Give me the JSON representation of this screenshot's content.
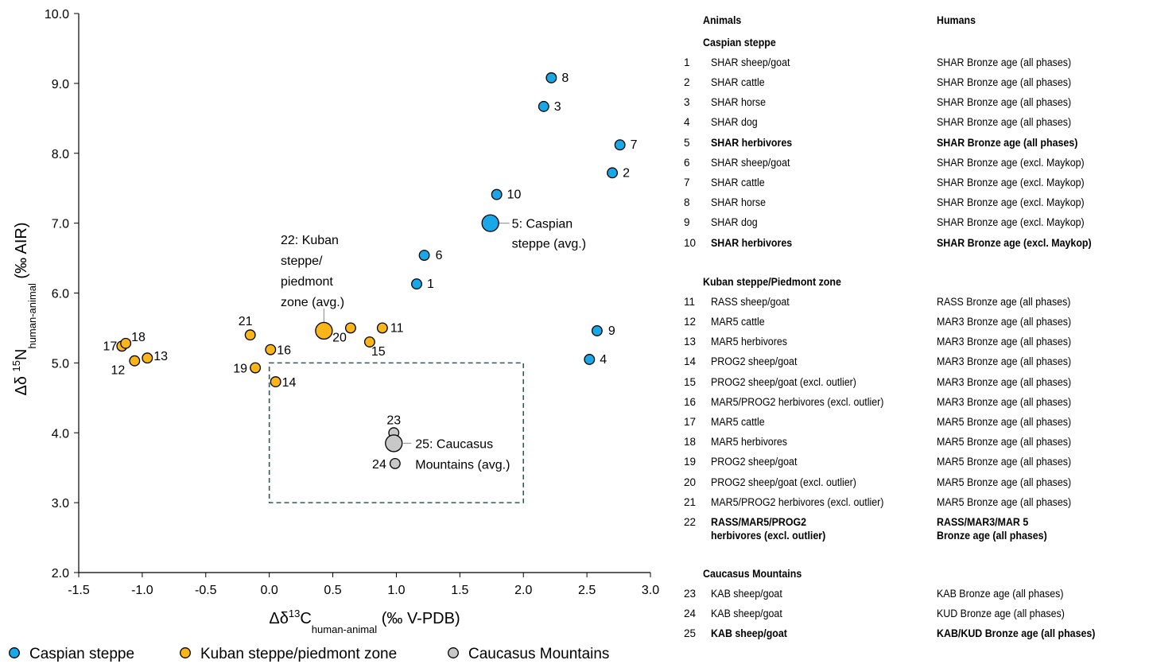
{
  "chart_data": {
    "type": "scatter",
    "xlabel_prefix": "Δδ",
    "xlabel_sup": "13",
    "xlabel_main": "C",
    "xlabel_sub": "human-animal",
    "xlabel_unit": " (‰ V-PDB)",
    "ylabel_prefix": "Δδ ",
    "ylabel_sup": "15",
    "ylabel_main": "N",
    "ylabel_sub": "human-animal",
    "ylabel_unit": " (‰ AIR)",
    "xlim": [
      -1.5,
      3.0
    ],
    "ylim": [
      2.0,
      10.0
    ],
    "x_ticks": [
      -1.5,
      -1.0,
      -0.5,
      0.0,
      0.5,
      1.0,
      1.5,
      2.0,
      2.5,
      3.0
    ],
    "y_ticks": [
      2.0,
      3.0,
      4.0,
      5.0,
      6.0,
      7.0,
      8.0,
      9.0,
      10.0
    ],
    "x_tick_labels": [
      "-1.5",
      "-1.0",
      "-0.5",
      "0.0",
      "0.5",
      "1.0",
      "1.5",
      "2.0",
      "2.5",
      "3.0"
    ],
    "y_tick_labels": [
      "2.0",
      "3.0",
      "4.0",
      "5.0",
      "6.0",
      "7.0",
      "8.0",
      "9.0",
      "10.0"
    ],
    "grid": false,
    "legend_position": "bottom",
    "colors": {
      "caspian": "#1AA7E8",
      "kuban": "#F9B51A",
      "caucasus": "#C8C8C8",
      "box": "#2F5D56"
    },
    "series": [
      {
        "name": "Caspian steppe",
        "color_key": "caspian",
        "points": [
          {
            "id": "1",
            "x": 1.16,
            "y": 6.13
          },
          {
            "id": "2",
            "x": 2.7,
            "y": 7.72
          },
          {
            "id": "3",
            "x": 2.16,
            "y": 8.67
          },
          {
            "id": "4",
            "x": 2.52,
            "y": 5.05
          },
          {
            "id": "5",
            "x": 1.74,
            "y": 7.0,
            "avg": true
          },
          {
            "id": "6",
            "x": 1.22,
            "y": 6.54
          },
          {
            "id": "7",
            "x": 2.76,
            "y": 8.12
          },
          {
            "id": "8",
            "x": 2.22,
            "y": 9.08
          },
          {
            "id": "9",
            "x": 2.58,
            "y": 5.46
          },
          {
            "id": "10",
            "x": 1.79,
            "y": 7.41
          }
        ]
      },
      {
        "name": "Kuban steppe/piedmont zone",
        "color_key": "kuban",
        "points": [
          {
            "id": "11",
            "x": 0.89,
            "y": 5.5
          },
          {
            "id": "12",
            "x": -1.06,
            "y": 5.03
          },
          {
            "id": "13",
            "x": -0.96,
            "y": 5.07
          },
          {
            "id": "14",
            "x": 0.05,
            "y": 4.73
          },
          {
            "id": "15",
            "x": 0.79,
            "y": 5.3
          },
          {
            "id": "16",
            "x": 0.01,
            "y": 5.19
          },
          {
            "id": "17",
            "x": -1.16,
            "y": 5.24
          },
          {
            "id": "18",
            "x": -1.13,
            "y": 5.28
          },
          {
            "id": "19",
            "x": -0.11,
            "y": 4.93
          },
          {
            "id": "20",
            "x": 0.64,
            "y": 5.5
          },
          {
            "id": "21",
            "x": -0.15,
            "y": 5.4
          },
          {
            "id": "22",
            "x": 0.43,
            "y": 5.46,
            "avg": true
          }
        ]
      },
      {
        "name": "Caucasus Mountains",
        "color_key": "caucasus",
        "points": [
          {
            "id": "23",
            "x": 0.98,
            "y": 4.0
          },
          {
            "id": "24",
            "x": 0.99,
            "y": 3.56
          },
          {
            "id": "25",
            "x": 0.98,
            "y": 3.85,
            "avg": true
          }
        ]
      }
    ],
    "dashed_box": {
      "x0": 0.0,
      "x1": 2.0,
      "y0": 3.0,
      "y1": 5.0
    },
    "annotations": {
      "avg5": [
        "5: Caspian",
        "steppe (avg.)"
      ],
      "avg22": [
        "22: Kuban",
        "steppe/",
        "piedmont",
        "zone (avg.)"
      ],
      "avg25": [
        "25: Caucasus",
        "Mountains (avg.)"
      ]
    }
  },
  "table": {
    "header_animals": "Animals",
    "header_humans": "Humans",
    "groups": [
      {
        "title": "Caspian steppe",
        "rows": [
          {
            "n": "1",
            "animal": "SHAR sheep/goat",
            "human": "SHAR Bronze age (all phases)"
          },
          {
            "n": "2",
            "animal": "SHAR cattle",
            "human": "SHAR Bronze age (all phases)"
          },
          {
            "n": "3",
            "animal": "SHAR horse",
            "human": "SHAR Bronze age (all phases)"
          },
          {
            "n": "4",
            "animal": "SHAR dog",
            "human": "SHAR Bronze age (all phases)"
          },
          {
            "n": "5",
            "animal": "SHAR herbivores",
            "human": "SHAR Bronze age (all phases)",
            "bold": true
          },
          {
            "n": "6",
            "animal": "SHAR sheep/goat",
            "human": "SHAR Bronze age (excl. Maykop)"
          },
          {
            "n": "7",
            "animal": "SHAR cattle",
            "human": "SHAR Bronze age (excl. Maykop)"
          },
          {
            "n": "8",
            "animal": "SHAR horse",
            "human": "SHAR Bronze age (excl. Maykop)"
          },
          {
            "n": "9",
            "animal": "SHAR dog",
            "human": "SHAR Bronze age (excl. Maykop)"
          },
          {
            "n": "10",
            "animal": "SHAR herbivores",
            "human": "SHAR Bronze age (excl. Maykop)",
            "bold": true
          }
        ]
      },
      {
        "title": "Kuban steppe/Piedmont zone",
        "rows": [
          {
            "n": "11",
            "animal": "RASS sheep/goat",
            "human": "RASS Bronze age (all phases)"
          },
          {
            "n": "12",
            "animal": "MAR5 cattle",
            "human": "MAR3 Bronze age (all phases)"
          },
          {
            "n": "13",
            "animal": "MAR5 herbivores",
            "human": "MAR3 Bronze age (all phases)"
          },
          {
            "n": "14",
            "animal": "PROG2 sheep/goat",
            "human": "MAR3 Bronze age (all phases)"
          },
          {
            "n": "15",
            "animal": "PROG2 sheep/goat (excl. outlier)",
            "human": "MAR3 Bronze age (all phases)"
          },
          {
            "n": "16",
            "animal": "MAR5/PROG2 herbivores (excl. outlier)",
            "human": "MAR3 Bronze age (all phases)"
          },
          {
            "n": "17",
            "animal": "MAR5 cattle",
            "human": "MAR5 Bronze age (all phases)"
          },
          {
            "n": "18",
            "animal": "MAR5 herbivores",
            "human": "MAR5 Bronze age (all phases)"
          },
          {
            "n": "19",
            "animal": "PROG2 sheep/goat",
            "human": "MAR5 Bronze age (all phases)"
          },
          {
            "n": "20",
            "animal": "PROG2 sheep/goat (excl. outlier)",
            "human": "MAR5 Bronze age (all phases)"
          },
          {
            "n": "21",
            "animal": "MAR5/PROG2 herbivores (excl. outlier)",
            "human": "MAR5 Bronze age (all phases)"
          },
          {
            "n": "22",
            "animal": "RASS/MAR5/PROG2",
            "animal2": "herbivores (excl. outlier)",
            "human": "RASS/MAR3/MAR 5",
            "human2": "Bronze age (all phases)",
            "bold": true
          }
        ]
      },
      {
        "title": "Caucasus Mountains",
        "rows": [
          {
            "n": "23",
            "animal": "KAB sheep/goat",
            "human": "KAB Bronze age (all phases)"
          },
          {
            "n": "24",
            "animal": "KAB sheep/goat",
            "human": "KUD Bronze age (all phases)"
          },
          {
            "n": "25",
            "animal": "KAB sheep/goat",
            "human": "KAB/KUD Bronze age (all phases)",
            "bold": true
          }
        ]
      }
    ]
  }
}
